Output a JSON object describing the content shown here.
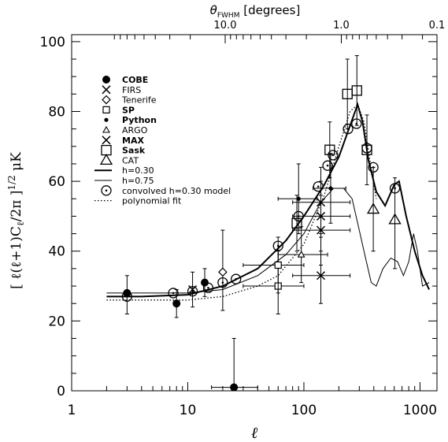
{
  "chart_data": {
    "type": "scatter",
    "x_scale": "log",
    "xlim": [
      1,
      1400
    ],
    "ylim": [
      0,
      102
    ],
    "xlabel": "ℓ",
    "ylabel": "[ ℓ(ℓ+1)C_ℓ/2π ]^{1/2} μK",
    "x_ticks": [
      {
        "value": 1,
        "label": "1"
      },
      {
        "value": 10,
        "label": "10"
      },
      {
        "value": 100,
        "label": "100"
      },
      {
        "value": 1000,
        "label": "1000"
      }
    ],
    "y_ticks": [
      {
        "value": 0,
        "label": "0"
      },
      {
        "value": 20,
        "label": "20"
      },
      {
        "value": 40,
        "label": "40"
      },
      {
        "value": 60,
        "label": "60"
      },
      {
        "value": 80,
        "label": "80"
      },
      {
        "value": 100,
        "label": "100"
      }
    ],
    "top_axis": {
      "title": "θ_FWHM [degrees]",
      "ticks": [
        {
          "ell": 21,
          "label": "10.0"
        },
        {
          "ell": 210,
          "label": "1.0"
        },
        {
          "ell": 2100,
          "label": "0.1"
        }
      ]
    },
    "legend": [
      {
        "label": "COBE",
        "marker": "filled-circle",
        "bold": true
      },
      {
        "label": "FIRS",
        "marker": "x",
        "bold": false
      },
      {
        "label": "Tenerife",
        "marker": "diamond",
        "bold": false
      },
      {
        "label": "SP",
        "marker": "square",
        "bold": true
      },
      {
        "label": "Python",
        "marker": "small-dot",
        "bold": true
      },
      {
        "label": "ARGO",
        "marker": "triangle",
        "bold": false
      },
      {
        "label": "MAX",
        "marker": "x",
        "bold": true
      },
      {
        "label": "Sask",
        "marker": "big-square",
        "bold": true
      },
      {
        "label": "CAT",
        "marker": "big-triangle",
        "bold": false
      },
      {
        "label": "h=0.30",
        "marker": "thick-line",
        "bold": false
      },
      {
        "label": "h=0.75",
        "marker": "thin-line",
        "bold": false
      },
      {
        "label": "convolved h=0.30 model",
        "marker": "circle-dot",
        "bold": false
      },
      {
        "label": "polynomial fit",
        "marker": "dotted-line",
        "bold": false
      }
    ],
    "series": [
      {
        "name": "COBE",
        "marker": "filled-circle",
        "points": [
          {
            "x": 3,
            "y": 28,
            "ylo": 22,
            "yhi": 33
          },
          {
            "x": 8,
            "y": 25,
            "ylo": 21,
            "yhi": 29
          },
          {
            "x": 14,
            "y": 31,
            "ylo": 27,
            "yhi": 35
          },
          {
            "x": 25,
            "y": 1,
            "ylo": 0,
            "yhi": 15,
            "xlo": 16,
            "xhi": 40
          }
        ]
      },
      {
        "name": "FIRS",
        "marker": "x",
        "points": [
          {
            "x": 11,
            "y": 29,
            "ylo": 24,
            "yhi": 34
          }
        ]
      },
      {
        "name": "Tenerife",
        "marker": "diamond",
        "points": [
          {
            "x": 20,
            "y": 34,
            "ylo": 23,
            "yhi": 46
          }
        ]
      },
      {
        "name": "SP",
        "marker": "square",
        "points": [
          {
            "x": 60,
            "y": 30,
            "ylo": 22,
            "yhi": 40,
            "xlo": 30,
            "xhi": 100
          },
          {
            "x": 60,
            "y": 36,
            "ylo": 28,
            "yhi": 44,
            "xlo": 30,
            "xhi": 100
          }
        ]
      },
      {
        "name": "Python",
        "marker": "small-dot",
        "points": [
          {
            "x": 90,
            "y": 55,
            "ylo": 45,
            "yhi": 65,
            "xlo": 60,
            "xhi": 130
          },
          {
            "x": 170,
            "y": 58,
            "ylo": 48,
            "yhi": 68,
            "xlo": 120,
            "xhi": 230
          }
        ]
      },
      {
        "name": "ARGO",
        "marker": "triangle",
        "points": [
          {
            "x": 95,
            "y": 39,
            "ylo": 31,
            "yhi": 47,
            "xlo": 60,
            "xhi": 160
          }
        ]
      },
      {
        "name": "MAX",
        "marker": "x",
        "points": [
          {
            "x": 140,
            "y": 33,
            "ylo": 25,
            "yhi": 45,
            "xlo": 80,
            "xhi": 250
          },
          {
            "x": 140,
            "y": 46,
            "ylo": 36,
            "yhi": 56,
            "xlo": 80,
            "xhi": 250
          },
          {
            "x": 140,
            "y": 50,
            "ylo": 40,
            "yhi": 60,
            "xlo": 80,
            "xhi": 250
          },
          {
            "x": 140,
            "y": 54,
            "ylo": 44,
            "yhi": 64,
            "xlo": 80,
            "xhi": 250
          }
        ]
      },
      {
        "name": "Sask",
        "marker": "big-square",
        "points": [
          {
            "x": 87,
            "y": 48,
            "ylo": 40,
            "yhi": 56
          },
          {
            "x": 167,
            "y": 69,
            "ylo": 61,
            "yhi": 77
          },
          {
            "x": 237,
            "y": 85,
            "ylo": 75,
            "yhi": 95
          },
          {
            "x": 286,
            "y": 86,
            "ylo": 76,
            "yhi": 96
          },
          {
            "x": 349,
            "y": 69,
            "ylo": 59,
            "yhi": 79
          }
        ]
      },
      {
        "name": "CAT",
        "marker": "big-triangle",
        "points": [
          {
            "x": 396,
            "y": 52,
            "ylo": 40,
            "yhi": 64
          },
          {
            "x": 608,
            "y": 49,
            "ylo": 35,
            "yhi": 61
          }
        ]
      },
      {
        "name": "convolved h=0.30 model",
        "marker": "circle-dot",
        "points": [
          {
            "x": 3,
            "y": 27
          },
          {
            "x": 7.5,
            "y": 28
          },
          {
            "x": 11,
            "y": 28.5
          },
          {
            "x": 15,
            "y": 29.5
          },
          {
            "x": 20,
            "y": 31
          },
          {
            "x": 26,
            "y": 32
          },
          {
            "x": 60,
            "y": 41.5
          },
          {
            "x": 90,
            "y": 50
          },
          {
            "x": 133,
            "y": 58.5
          },
          {
            "x": 160,
            "y": 64.5
          },
          {
            "x": 178,
            "y": 67.5
          },
          {
            "x": 240,
            "y": 75
          },
          {
            "x": 284,
            "y": 76.5
          },
          {
            "x": 349,
            "y": 69.5
          },
          {
            "x": 396,
            "y": 64
          },
          {
            "x": 608,
            "y": 58
          }
        ]
      }
    ],
    "curves": [
      {
        "name": "h=0.30",
        "style": "thick",
        "points": [
          [
            2,
            27
          ],
          [
            4,
            27
          ],
          [
            10,
            27.5
          ],
          [
            20,
            30
          ],
          [
            40,
            35
          ],
          [
            70,
            43
          ],
          [
            100,
            50
          ],
          [
            150,
            59
          ],
          [
            200,
            67
          ],
          [
            250,
            76
          ],
          [
            290,
            82
          ],
          [
            320,
            77
          ],
          [
            360,
            66
          ],
          [
            420,
            57
          ],
          [
            500,
            53
          ],
          [
            600,
            59
          ],
          [
            660,
            60
          ],
          [
            760,
            50
          ],
          [
            900,
            40
          ],
          [
            1050,
            33
          ],
          [
            1200,
            29
          ]
        ]
      },
      {
        "name": "h=0.75",
        "style": "thin",
        "points": [
          [
            2,
            28
          ],
          [
            5,
            28
          ],
          [
            10,
            28
          ],
          [
            20,
            29
          ],
          [
            40,
            33
          ],
          [
            70,
            39
          ],
          [
            100,
            45
          ],
          [
            140,
            54
          ],
          [
            180,
            58
          ],
          [
            220,
            58
          ],
          [
            260,
            55
          ],
          [
            300,
            46
          ],
          [
            340,
            38
          ],
          [
            380,
            31
          ],
          [
            420,
            30
          ],
          [
            480,
            35
          ],
          [
            560,
            38
          ],
          [
            640,
            37
          ],
          [
            720,
            33
          ],
          [
            800,
            37
          ],
          [
            880,
            45
          ],
          [
            950,
            40
          ],
          [
            1050,
            30
          ],
          [
            1200,
            31
          ]
        ]
      },
      {
        "name": "polynomial fit",
        "style": "dotted",
        "points": [
          [
            2,
            26
          ],
          [
            10,
            26
          ],
          [
            20,
            27
          ],
          [
            40,
            30
          ],
          [
            60,
            33
          ],
          [
            100,
            42
          ],
          [
            150,
            56
          ],
          [
            200,
            70
          ],
          [
            250,
            80
          ],
          [
            290,
            82
          ],
          [
            330,
            77
          ],
          [
            370,
            66
          ],
          [
            420,
            55
          ]
        ]
      }
    ]
  }
}
